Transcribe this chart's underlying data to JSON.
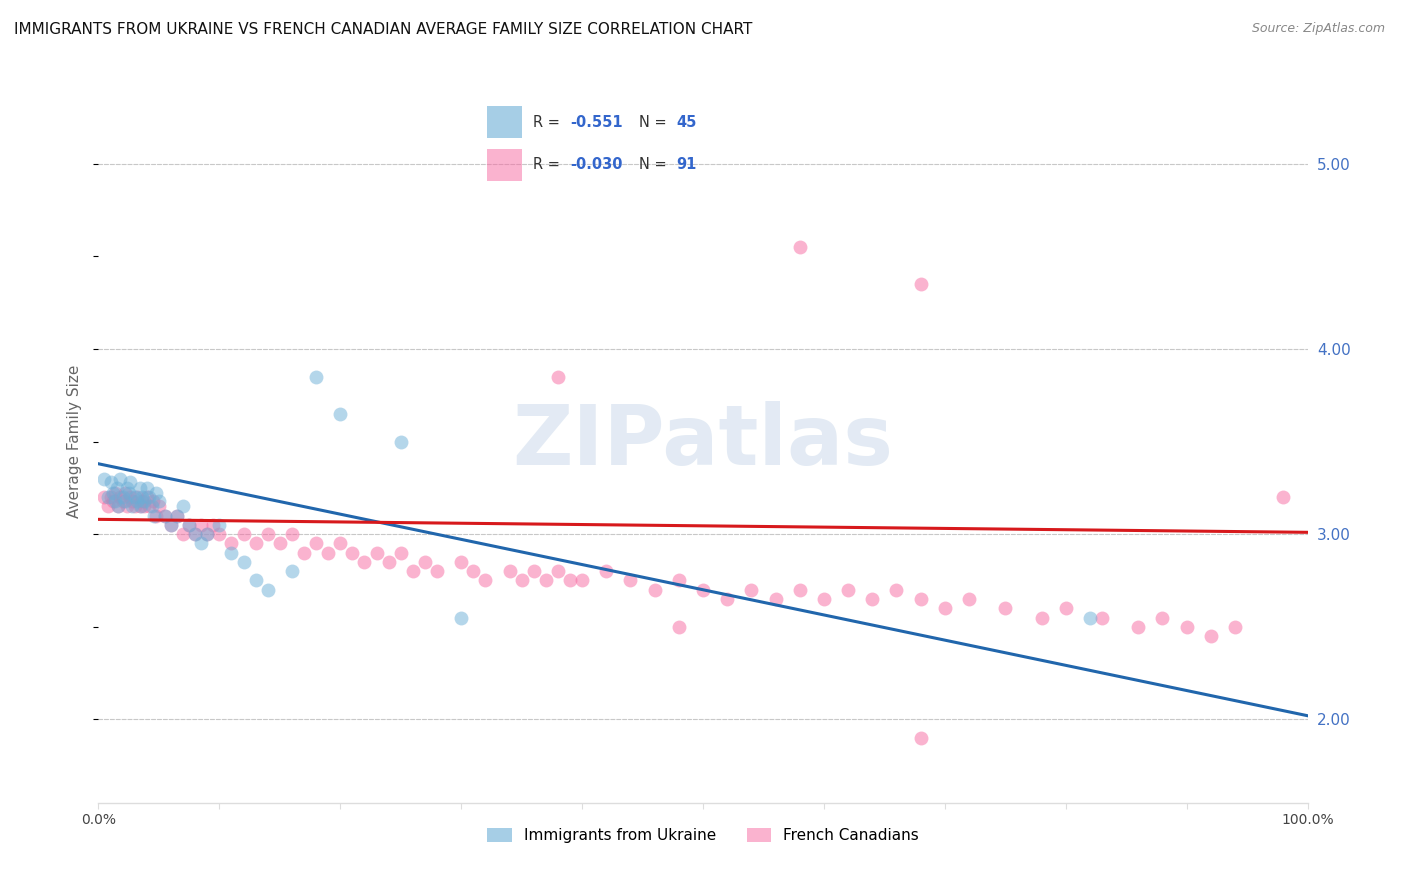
{
  "title": "IMMIGRANTS FROM UKRAINE VS FRENCH CANADIAN AVERAGE FAMILY SIZE CORRELATION CHART",
  "source": "Source: ZipAtlas.com",
  "ylabel": "Average Family Size",
  "yticks_right": [
    2.0,
    3.0,
    4.0,
    5.0
  ],
  "xlim": [
    0.0,
    1.0
  ],
  "ylim": [
    1.55,
    5.45
  ],
  "legend_entries": [
    {
      "color": "#a8c8e8",
      "R": "-0.551",
      "N": "45"
    },
    {
      "color": "#f4b0bc",
      "R": "-0.030",
      "N": "91"
    }
  ],
  "blue_line_x": [
    0.0,
    1.0
  ],
  "blue_line_y": [
    3.38,
    2.02
  ],
  "pink_line_x": [
    0.0,
    1.0
  ],
  "pink_line_y": [
    3.08,
    3.01
  ],
  "blue_scatter_x": [
    0.005,
    0.008,
    0.01,
    0.012,
    0.014,
    0.015,
    0.016,
    0.018,
    0.02,
    0.022,
    0.024,
    0.025,
    0.026,
    0.028,
    0.03,
    0.032,
    0.034,
    0.035,
    0.036,
    0.038,
    0.04,
    0.042,
    0.044,
    0.046,
    0.048,
    0.05,
    0.055,
    0.06,
    0.065,
    0.07,
    0.075,
    0.08,
    0.085,
    0.09,
    0.1,
    0.11,
    0.12,
    0.13,
    0.14,
    0.16,
    0.18,
    0.2,
    0.25,
    0.3,
    0.82
  ],
  "blue_scatter_y": [
    3.3,
    3.2,
    3.28,
    3.22,
    3.18,
    3.25,
    3.15,
    3.3,
    3.2,
    3.18,
    3.25,
    3.22,
    3.28,
    3.15,
    3.2,
    3.18,
    3.25,
    3.15,
    3.2,
    3.18,
    3.25,
    3.2,
    3.15,
    3.1,
    3.22,
    3.18,
    3.1,
    3.05,
    3.1,
    3.15,
    3.05,
    3.0,
    2.95,
    3.0,
    3.05,
    2.9,
    2.85,
    2.75,
    2.7,
    2.8,
    3.85,
    3.65,
    3.5,
    2.55,
    2.55
  ],
  "pink_scatter_x": [
    0.005,
    0.008,
    0.01,
    0.012,
    0.014,
    0.016,
    0.018,
    0.02,
    0.022,
    0.024,
    0.026,
    0.028,
    0.03,
    0.032,
    0.034,
    0.036,
    0.038,
    0.04,
    0.042,
    0.045,
    0.048,
    0.05,
    0.055,
    0.06,
    0.065,
    0.07,
    0.075,
    0.08,
    0.085,
    0.09,
    0.095,
    0.1,
    0.11,
    0.12,
    0.13,
    0.14,
    0.15,
    0.16,
    0.17,
    0.18,
    0.19,
    0.2,
    0.21,
    0.22,
    0.23,
    0.24,
    0.25,
    0.26,
    0.27,
    0.28,
    0.3,
    0.31,
    0.32,
    0.34,
    0.35,
    0.36,
    0.37,
    0.38,
    0.39,
    0.4,
    0.42,
    0.44,
    0.46,
    0.48,
    0.5,
    0.52,
    0.54,
    0.56,
    0.58,
    0.6,
    0.62,
    0.64,
    0.66,
    0.68,
    0.7,
    0.72,
    0.75,
    0.78,
    0.8,
    0.83,
    0.86,
    0.88,
    0.9,
    0.92,
    0.94,
    0.38,
    0.48,
    0.58,
    0.68,
    0.98,
    0.68
  ],
  "pink_scatter_y": [
    3.2,
    3.15,
    3.2,
    3.18,
    3.22,
    3.15,
    3.2,
    3.18,
    3.22,
    3.15,
    3.2,
    3.18,
    3.15,
    3.2,
    3.15,
    3.18,
    3.15,
    3.2,
    3.15,
    3.18,
    3.1,
    3.15,
    3.1,
    3.05,
    3.1,
    3.0,
    3.05,
    3.0,
    3.05,
    3.0,
    3.05,
    3.0,
    2.95,
    3.0,
    2.95,
    3.0,
    2.95,
    3.0,
    2.9,
    2.95,
    2.9,
    2.95,
    2.9,
    2.85,
    2.9,
    2.85,
    2.9,
    2.8,
    2.85,
    2.8,
    2.85,
    2.8,
    2.75,
    2.8,
    2.75,
    2.8,
    2.75,
    2.8,
    2.75,
    2.75,
    2.8,
    2.75,
    2.7,
    2.75,
    2.7,
    2.65,
    2.7,
    2.65,
    2.7,
    2.65,
    2.7,
    2.65,
    2.7,
    2.65,
    2.6,
    2.65,
    2.6,
    2.55,
    2.6,
    2.55,
    2.5,
    2.55,
    2.5,
    2.45,
    2.5,
    3.85,
    2.5,
    4.55,
    4.35,
    3.2,
    1.9
  ],
  "watermark": "ZIPatlas",
  "bg_color": "#ffffff",
  "scatter_alpha": 0.5,
  "scatter_size": 100,
  "blue_color": "#6baed6",
  "pink_color": "#f768a1",
  "blue_line_color": "#2166ac",
  "pink_line_color": "#d7191c",
  "title_fontsize": 11,
  "axis_label_color": "#666666",
  "right_tick_color": "#4472c4",
  "grid_color": "#c8c8c8",
  "bottom_legend": [
    "Immigrants from Ukraine",
    "French Canadians"
  ]
}
